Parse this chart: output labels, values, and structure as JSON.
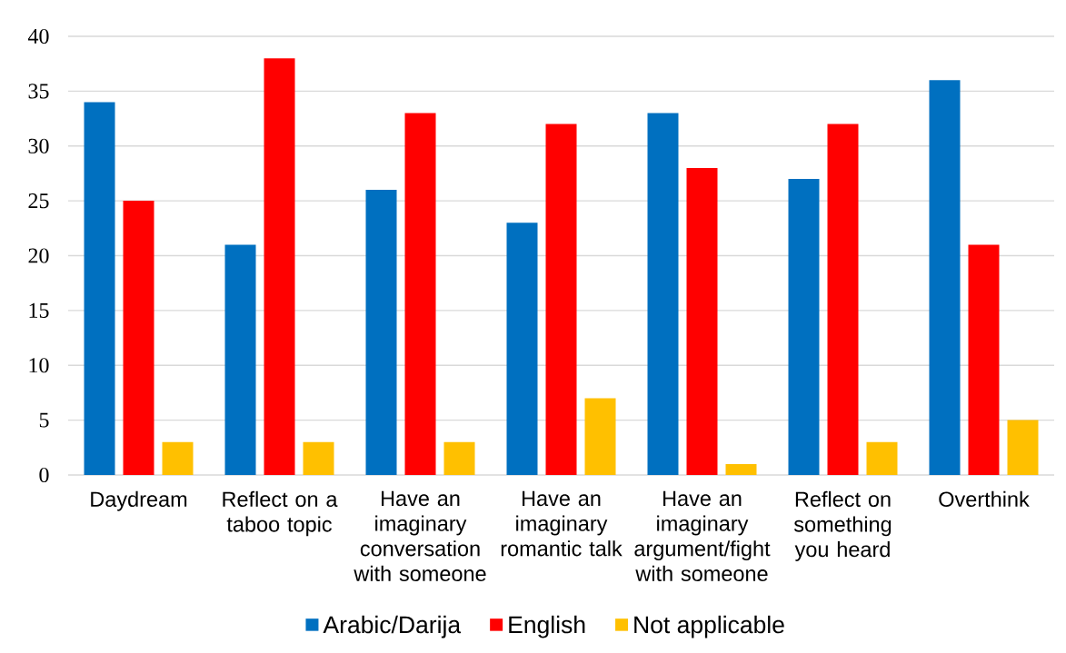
{
  "chart_data": {
    "type": "bar",
    "categories": [
      "Daydream",
      "Reflect on a taboo topic",
      "Have an imaginary conversation with someone",
      "Have an imaginary romantic talk",
      "Have an imaginary argument/fight with someone",
      "Reflect on something you heard",
      "Overthink"
    ],
    "series": [
      {
        "name": "Arabic/Darija",
        "color": "#0070c0",
        "values": [
          34,
          21,
          26,
          23,
          33,
          27,
          36
        ]
      },
      {
        "name": "English",
        "color": "#ff0000",
        "values": [
          25,
          38,
          33,
          32,
          28,
          32,
          21
        ]
      },
      {
        "name": "Not applicable",
        "color": "#ffc000",
        "values": [
          3,
          3,
          3,
          7,
          1,
          3,
          5
        ]
      }
    ],
    "ylim": [
      0,
      40
    ],
    "yticks": [
      0,
      5,
      10,
      15,
      20,
      25,
      30,
      35,
      40
    ],
    "grid": "y",
    "legend": "bottom"
  }
}
